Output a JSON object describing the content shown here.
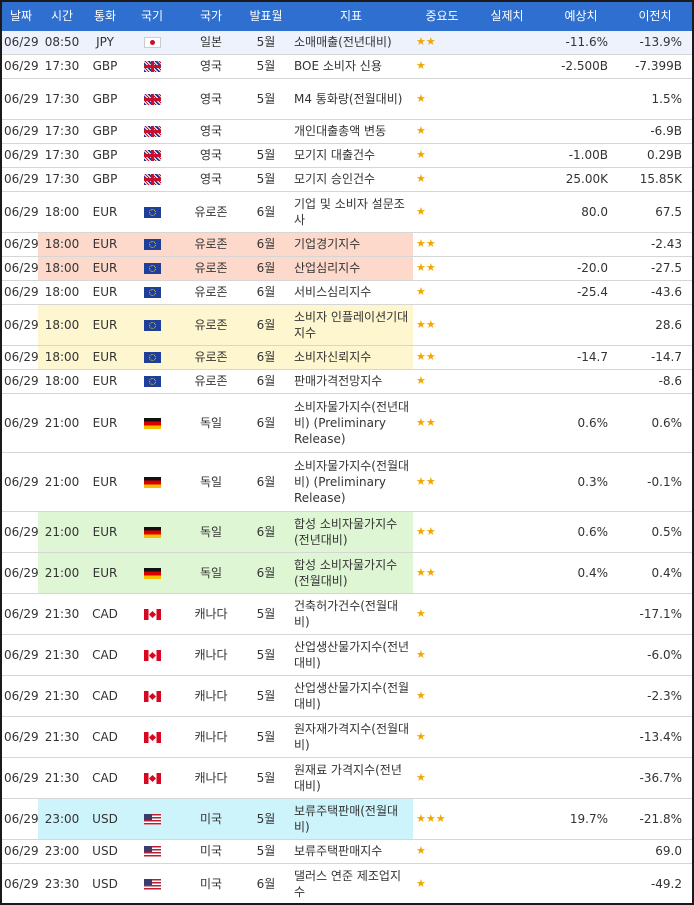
{
  "headers": [
    "날짜",
    "시간",
    "통화",
    "국기",
    "국가",
    "발표월",
    "지표",
    "중요도",
    "실제치",
    "예상치",
    "이전치"
  ],
  "colors": {
    "header_bg": "#2f6fcf",
    "highlight_salmon": "#fdd9cc",
    "highlight_yellow": "#fdf6cf",
    "highlight_green": "#dff6d4",
    "highlight_cyan": "#cdf3fb",
    "highlight_lightblue": "#eef2fc",
    "star": "#f0a800"
  },
  "rows": [
    {
      "date": "06/29",
      "time": "08:50",
      "currency": "JPY",
      "flag": "japan-flag-icon",
      "country": "일본",
      "month": "5월",
      "indicator": "소매매출(전년대비)",
      "importance": "★★",
      "actual": "",
      "forecast": "-11.6%",
      "previous": "-13.9%"
    },
    {
      "date": "06/29",
      "time": "17:30",
      "currency": "GBP",
      "flag": "uk-flag-icon",
      "country": "영국",
      "month": "5월",
      "indicator": "BOE 소비자 신용",
      "importance": "★",
      "actual": "",
      "forecast": "-2.500B",
      "previous": "-7.399B"
    },
    {
      "date": "06/29",
      "time": "17:30",
      "currency": "GBP",
      "flag": "uk-flag-icon",
      "country": "영국",
      "month": "5월",
      "indicator": "M4 통화량(전월대비)",
      "importance": "★",
      "actual": "",
      "forecast": "",
      "previous": "1.5%"
    },
    {
      "date": "06/29",
      "time": "17:30",
      "currency": "GBP",
      "flag": "uk-flag-icon",
      "country": "영국",
      "month": "",
      "indicator": "개인대출총액 변동",
      "importance": "★",
      "actual": "",
      "forecast": "",
      "previous": "-6.9B"
    },
    {
      "date": "06/29",
      "time": "17:30",
      "currency": "GBP",
      "flag": "uk-flag-icon",
      "country": "영국",
      "month": "5월",
      "indicator": "모기지 대출건수",
      "importance": "★",
      "actual": "",
      "forecast": "-1.00B",
      "previous": "0.29B"
    },
    {
      "date": "06/29",
      "time": "17:30",
      "currency": "GBP",
      "flag": "uk-flag-icon",
      "country": "영국",
      "month": "5월",
      "indicator": "모기지 승인건수",
      "importance": "★",
      "actual": "",
      "forecast": "25.00K",
      "previous": "15.85K"
    },
    {
      "date": "06/29",
      "time": "18:00",
      "currency": "EUR",
      "flag": "eu-flag-icon",
      "country": "유로존",
      "month": "6월",
      "indicator": "기업 및 소비자 설문조사",
      "importance": "★",
      "actual": "",
      "forecast": "80.0",
      "previous": "67.5"
    },
    {
      "date": "06/29",
      "time": "18:00",
      "currency": "EUR",
      "flag": "eu-flag-icon",
      "country": "유로존",
      "month": "6월",
      "indicator": "기업경기지수",
      "importance": "★★",
      "actual": "",
      "forecast": "",
      "previous": "-2.43"
    },
    {
      "date": "06/29",
      "time": "18:00",
      "currency": "EUR",
      "flag": "eu-flag-icon",
      "country": "유로존",
      "month": "6월",
      "indicator": "산업심리지수",
      "importance": "★★",
      "actual": "",
      "forecast": "-20.0",
      "previous": "-27.5"
    },
    {
      "date": "06/29",
      "time": "18:00",
      "currency": "EUR",
      "flag": "eu-flag-icon",
      "country": "유로존",
      "month": "6월",
      "indicator": "서비스심리지수",
      "importance": "★",
      "actual": "",
      "forecast": "-25.4",
      "previous": "-43.6"
    },
    {
      "date": "06/29",
      "time": "18:00",
      "currency": "EUR",
      "flag": "eu-flag-icon",
      "country": "유로존",
      "month": "6월",
      "indicator": "소비자 인플레이션기대지수",
      "importance": "★★",
      "actual": "",
      "forecast": "",
      "previous": "28.6"
    },
    {
      "date": "06/29",
      "time": "18:00",
      "currency": "EUR",
      "flag": "eu-flag-icon",
      "country": "유로존",
      "month": "6월",
      "indicator": "소비자신뢰지수",
      "importance": "★★",
      "actual": "",
      "forecast": "-14.7",
      "previous": "-14.7"
    },
    {
      "date": "06/29",
      "time": "18:00",
      "currency": "EUR",
      "flag": "eu-flag-icon",
      "country": "유로존",
      "month": "6월",
      "indicator": "판매가격전망지수",
      "importance": "★",
      "actual": "",
      "forecast": "",
      "previous": "-8.6"
    },
    {
      "date": "06/29",
      "time": "21:00",
      "currency": "EUR",
      "flag": "germany-flag-icon",
      "country": "독일",
      "month": "6월",
      "indicator": "소비자물가지수(전년대비) (Preliminary Release)",
      "importance": "★★",
      "actual": "",
      "forecast": "0.6%",
      "previous": "0.6%"
    },
    {
      "date": "06/29",
      "time": "21:00",
      "currency": "EUR",
      "flag": "germany-flag-icon",
      "country": "독일",
      "month": "6월",
      "indicator": "소비자물가지수(전월대비) (Preliminary Release)",
      "importance": "★★",
      "actual": "",
      "forecast": "0.3%",
      "previous": "-0.1%"
    },
    {
      "date": "06/29",
      "time": "21:00",
      "currency": "EUR",
      "flag": "germany-flag-icon",
      "country": "독일",
      "month": "6월",
      "indicator": "합성 소비자물가지수(전년대비)",
      "importance": "★★",
      "actual": "",
      "forecast": "0.6%",
      "previous": "0.5%"
    },
    {
      "date": "06/29",
      "time": "21:00",
      "currency": "EUR",
      "flag": "germany-flag-icon",
      "country": "독일",
      "month": "6월",
      "indicator": "합성 소비자물가지수(전월대비)",
      "importance": "★★",
      "actual": "",
      "forecast": "0.4%",
      "previous": "0.4%"
    },
    {
      "date": "06/29",
      "time": "21:30",
      "currency": "CAD",
      "flag": "canada-flag-icon",
      "country": "캐나다",
      "month": "5월",
      "indicator": "건축허가건수(전월대비)",
      "importance": "★",
      "actual": "",
      "forecast": "",
      "previous": "-17.1%"
    },
    {
      "date": "06/29",
      "time": "21:30",
      "currency": "CAD",
      "flag": "canada-flag-icon",
      "country": "캐나다",
      "month": "5월",
      "indicator": "산업생산물가지수(전년대비)",
      "importance": "★",
      "actual": "",
      "forecast": "",
      "previous": "-6.0%"
    },
    {
      "date": "06/29",
      "time": "21:30",
      "currency": "CAD",
      "flag": "canada-flag-icon",
      "country": "캐나다",
      "month": "5월",
      "indicator": "산업생산물가지수(전월대비)",
      "importance": "★",
      "actual": "",
      "forecast": "",
      "previous": "-2.3%"
    },
    {
      "date": "06/29",
      "time": "21:30",
      "currency": "CAD",
      "flag": "canada-flag-icon",
      "country": "캐나다",
      "month": "5월",
      "indicator": "원자재가격지수(전월대비)",
      "importance": "★",
      "actual": "",
      "forecast": "",
      "previous": "-13.4%"
    },
    {
      "date": "06/29",
      "time": "21:30",
      "currency": "CAD",
      "flag": "canada-flag-icon",
      "country": "캐나다",
      "month": "5월",
      "indicator": "원재료 가격지수(전년대비)",
      "importance": "★",
      "actual": "",
      "forecast": "",
      "previous": "-36.7%"
    },
    {
      "date": "06/29",
      "time": "23:00",
      "currency": "USD",
      "flag": "usa-flag-icon",
      "country": "미국",
      "month": "5월",
      "indicator": "보류주택판매(전월대비)",
      "importance": "★★★",
      "actual": "",
      "forecast": "19.7%",
      "previous": "-21.8%"
    },
    {
      "date": "06/29",
      "time": "23:00",
      "currency": "USD",
      "flag": "usa-flag-icon",
      "country": "미국",
      "month": "5월",
      "indicator": "보류주택판매지수",
      "importance": "★",
      "actual": "",
      "forecast": "",
      "previous": "69.0"
    },
    {
      "date": "06/29",
      "time": "23:30",
      "currency": "USD",
      "flag": "usa-flag-icon",
      "country": "미국",
      "month": "6월",
      "indicator": "댈러스 연준 제조업지수",
      "importance": "★",
      "actual": "",
      "forecast": "",
      "previous": "-49.2"
    }
  ]
}
